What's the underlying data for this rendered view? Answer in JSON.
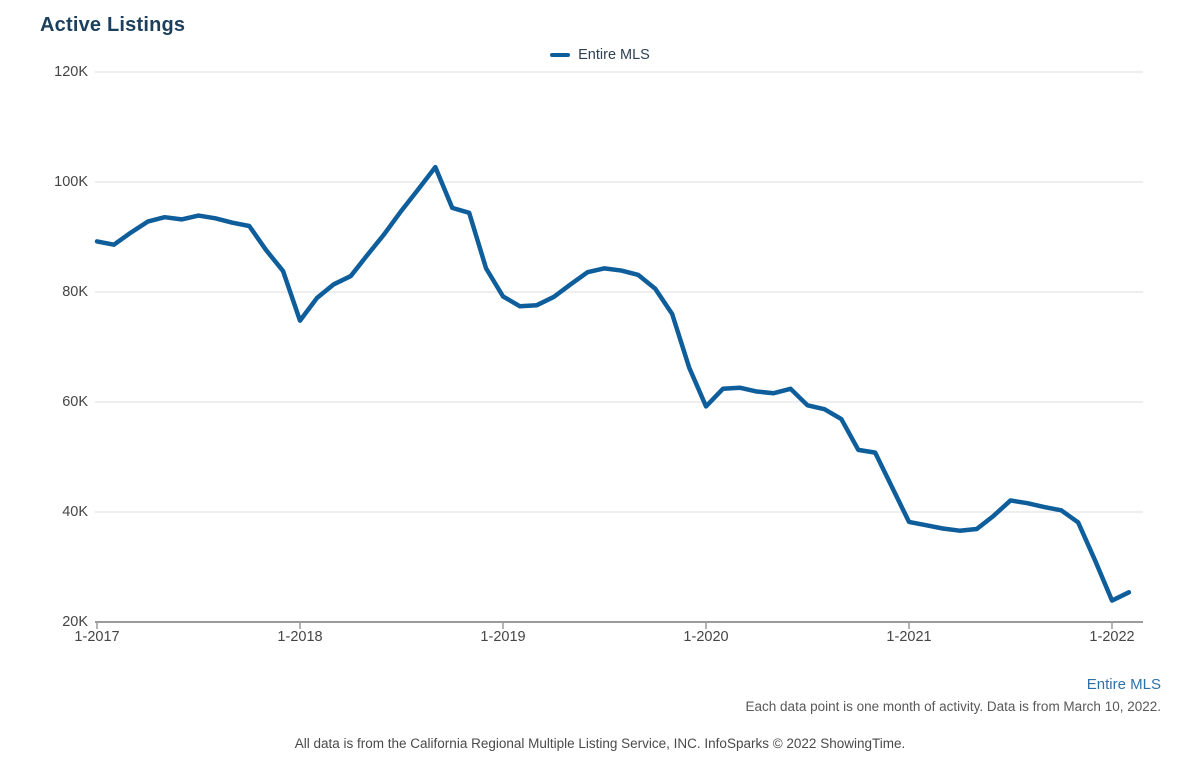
{
  "header": {
    "title": "Active Listings"
  },
  "legend": {
    "label": "Entire MLS",
    "color": "#0f5e9c"
  },
  "chart_data": {
    "type": "line",
    "title": "Active Listings",
    "series_name": "Entire MLS",
    "values_unit": "K (thousands of listings)",
    "grid": "horizontal",
    "legend_position": "top-center",
    "line_color": "#0f5e9c",
    "ylim": [
      20,
      120
    ],
    "x": [
      "2017-01",
      "2017-02",
      "2017-03",
      "2017-04",
      "2017-05",
      "2017-06",
      "2017-07",
      "2017-08",
      "2017-09",
      "2017-10",
      "2017-11",
      "2017-12",
      "2018-01",
      "2018-02",
      "2018-03",
      "2018-04",
      "2018-05",
      "2018-06",
      "2018-07",
      "2018-08",
      "2018-09",
      "2018-10",
      "2018-11",
      "2018-12",
      "2019-01",
      "2019-02",
      "2019-03",
      "2019-04",
      "2019-05",
      "2019-06",
      "2019-07",
      "2019-08",
      "2019-09",
      "2019-10",
      "2019-11",
      "2019-12",
      "2020-01",
      "2020-02",
      "2020-03",
      "2020-04",
      "2020-05",
      "2020-06",
      "2020-07",
      "2020-08",
      "2020-09",
      "2020-10",
      "2020-11",
      "2020-12",
      "2021-01",
      "2021-02",
      "2021-03",
      "2021-04",
      "2021-05",
      "2021-06",
      "2021-07",
      "2021-08",
      "2021-09",
      "2021-10",
      "2021-11",
      "2021-12",
      "2022-01",
      "2022-02"
    ],
    "values": [
      89.2,
      88.6,
      90.8,
      92.8,
      93.6,
      93.2,
      93.9,
      93.4,
      92.6,
      92.0,
      87.6,
      83.8,
      74.8,
      78.9,
      81.4,
      82.9,
      86.8,
      90.6,
      94.8,
      98.7,
      102.7,
      95.3,
      94.4,
      84.3,
      79.2,
      77.4,
      77.6,
      79.1,
      81.4,
      83.6,
      84.3,
      83.9,
      83.1,
      80.6,
      76.0,
      66.3,
      59.2,
      62.4,
      62.6,
      61.9,
      61.6,
      62.4,
      59.4,
      58.7,
      56.9,
      51.3,
      50.8,
      44.5,
      38.2,
      37.6,
      37.0,
      36.6,
      36.9,
      39.3,
      42.1,
      41.6,
      40.9,
      40.3,
      38.1,
      31.2,
      23.9,
      25.4
    ],
    "x_ticks": [
      {
        "i": 0,
        "label": "1-2017"
      },
      {
        "i": 12,
        "label": "1-2018"
      },
      {
        "i": 24,
        "label": "1-2019"
      },
      {
        "i": 36,
        "label": "1-2020"
      },
      {
        "i": 48,
        "label": "1-2021"
      },
      {
        "i": 60,
        "label": "1-2022"
      }
    ],
    "y_ticks": [
      {
        "value": 20,
        "label": "20K"
      },
      {
        "value": 40,
        "label": "40K"
      },
      {
        "value": 60,
        "label": "60K"
      },
      {
        "value": 80,
        "label": "80K"
      },
      {
        "value": 100,
        "label": "100K"
      },
      {
        "value": 120,
        "label": "120K"
      }
    ]
  },
  "annotations": {
    "series_link": "Entire MLS",
    "footnote": "Each data point is one month of activity. Data is from March 10, 2022.",
    "footer": "All data is from the California Regional Multiple Listing Service, INC. InfoSparks © 2022 ShowingTime."
  }
}
